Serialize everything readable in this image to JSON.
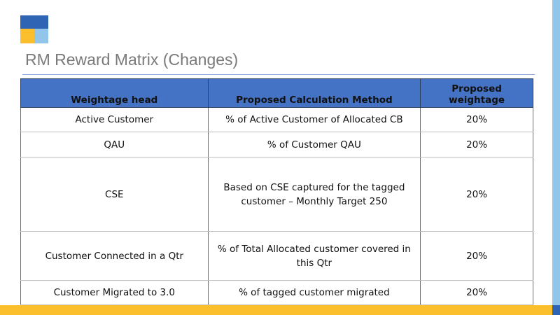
{
  "slide": {
    "title": "RM Reward Matrix (Changes)",
    "colors": {
      "logo_blue": "#2e64b3",
      "logo_yellow": "#fbbf2e",
      "logo_light_blue": "#92c5ea",
      "header_fill": "#4472c4",
      "title_color": "#7a7a7a",
      "bottom_bar": "#fbbf2e",
      "right_bar": "#92c5ea"
    }
  },
  "table": {
    "headers": [
      "Weightage head",
      "Proposed Calculation Method",
      "Proposed weightage"
    ],
    "rows": [
      {
        "head": "Active Customer",
        "method": "% of Active Customer of Allocated CB",
        "weightage": "20%"
      },
      {
        "head": "QAU",
        "method": "% of Customer QAU",
        "weightage": "20%"
      },
      {
        "head": "CSE",
        "method": "Based on CSE captured for the tagged customer – Monthly Target 250",
        "weightage": "20%"
      },
      {
        "head": "Customer Connected in a Qtr",
        "method": "% of Total Allocated customer covered in this Qtr",
        "weightage": "20%"
      },
      {
        "head": "Customer Migrated to 3.0",
        "method": "% of tagged customer migrated",
        "weightage": "20%"
      }
    ]
  }
}
